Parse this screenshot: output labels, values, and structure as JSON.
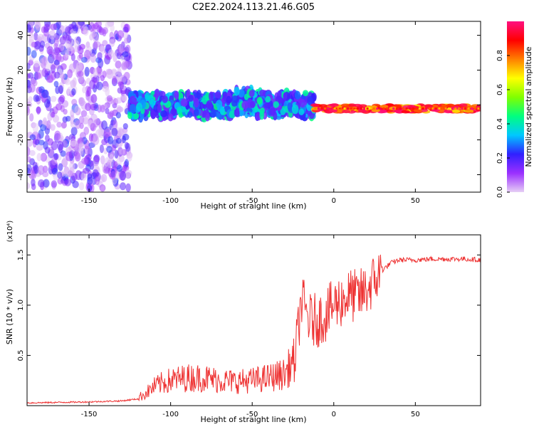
{
  "title": "C2E2.2024.113.21.46.G05",
  "chart_data": [
    {
      "type": "heatmap",
      "title": "C2E2.2024.113.21.46.G05",
      "xlabel": "Height of straight line (km)",
      "ylabel": "Frequency (Hz)",
      "xlim": [
        -188,
        90
      ],
      "ylim": [
        -50,
        48
      ],
      "x_ticks": [
        -150,
        -100,
        -50,
        0,
        50
      ],
      "x_tick_labels": [
        "-150",
        "-100",
        "-50",
        "0",
        "50"
      ],
      "y_ticks": [
        -40,
        -20,
        0,
        20,
        40
      ],
      "y_tick_labels": [
        "-40",
        "-20",
        "0",
        "20",
        "40"
      ],
      "colorbar": {
        "label": "Normalized spectral amplitude",
        "range": [
          0,
          1
        ],
        "ticks": [
          0.0,
          0.2,
          0.4,
          0.6,
          0.8
        ],
        "tick_labels": [
          "0.0",
          "0.2",
          "0.4",
          "0.6",
          "0.8"
        ],
        "colors": [
          "#e6cff5",
          "#9b30ff",
          "#3020ff",
          "#00c8ff",
          "#00ff80",
          "#80ff00",
          "#ffff00",
          "#ff8000",
          "#ff0000",
          "#ff1080"
        ]
      },
      "regions": [
        {
          "x_range": [
            -188,
            -125
          ],
          "description": "scattered noise",
          "center_frequency": 0,
          "spread": 48,
          "amplitude": [
            0.0,
            0.25
          ]
        },
        {
          "x_range": [
            -125,
            -12
          ],
          "description": "dense band",
          "center_frequency": 0,
          "spread": 8,
          "amplitude": [
            0.15,
            0.45
          ]
        },
        {
          "x_range": [
            -12,
            90
          ],
          "description": "narrow tone",
          "center_frequency": -2,
          "spread": 2,
          "amplitude": [
            0.6,
            1.0
          ]
        }
      ]
    },
    {
      "type": "line",
      "xlabel": "Height of straight line (km)",
      "ylabel": "SNR (10 * v/v)",
      "y_multiplier": "(x10⁴)",
      "xlim": [
        -188,
        90
      ],
      "ylim": [
        0,
        1.7
      ],
      "x_ticks": [
        -150,
        -100,
        -50,
        0,
        50
      ],
      "x_tick_labels": [
        "-150",
        "-100",
        "-50",
        "0",
        "50"
      ],
      "y_ticks": [
        0.5,
        1.0,
        1.5
      ],
      "y_tick_labels": [
        "0.5",
        "1.0",
        "1.5"
      ],
      "color": "#ee3333",
      "series": [
        {
          "x": [
            -188,
            -150,
            -130,
            -120,
            -115,
            -110,
            -105,
            -100,
            -90,
            -80,
            -70,
            -60,
            -50,
            -40,
            -30,
            -25,
            -22,
            -20,
            -15,
            -10,
            -5,
            0,
            5,
            10,
            15,
            20,
            25,
            30,
            35,
            40,
            50,
            60,
            70,
            80,
            90
          ],
          "y": [
            0.02,
            0.03,
            0.04,
            0.06,
            0.1,
            0.15,
            0.18,
            0.2,
            0.22,
            0.22,
            0.2,
            0.19,
            0.2,
            0.22,
            0.25,
            0.35,
            0.7,
            1.05,
            0.85,
            0.85,
            0.9,
            1.0,
            1.05,
            1.1,
            1.08,
            1.15,
            1.25,
            1.35,
            1.42,
            1.45,
            1.45,
            1.46,
            1.46,
            1.46,
            1.45
          ]
        }
      ]
    }
  ]
}
